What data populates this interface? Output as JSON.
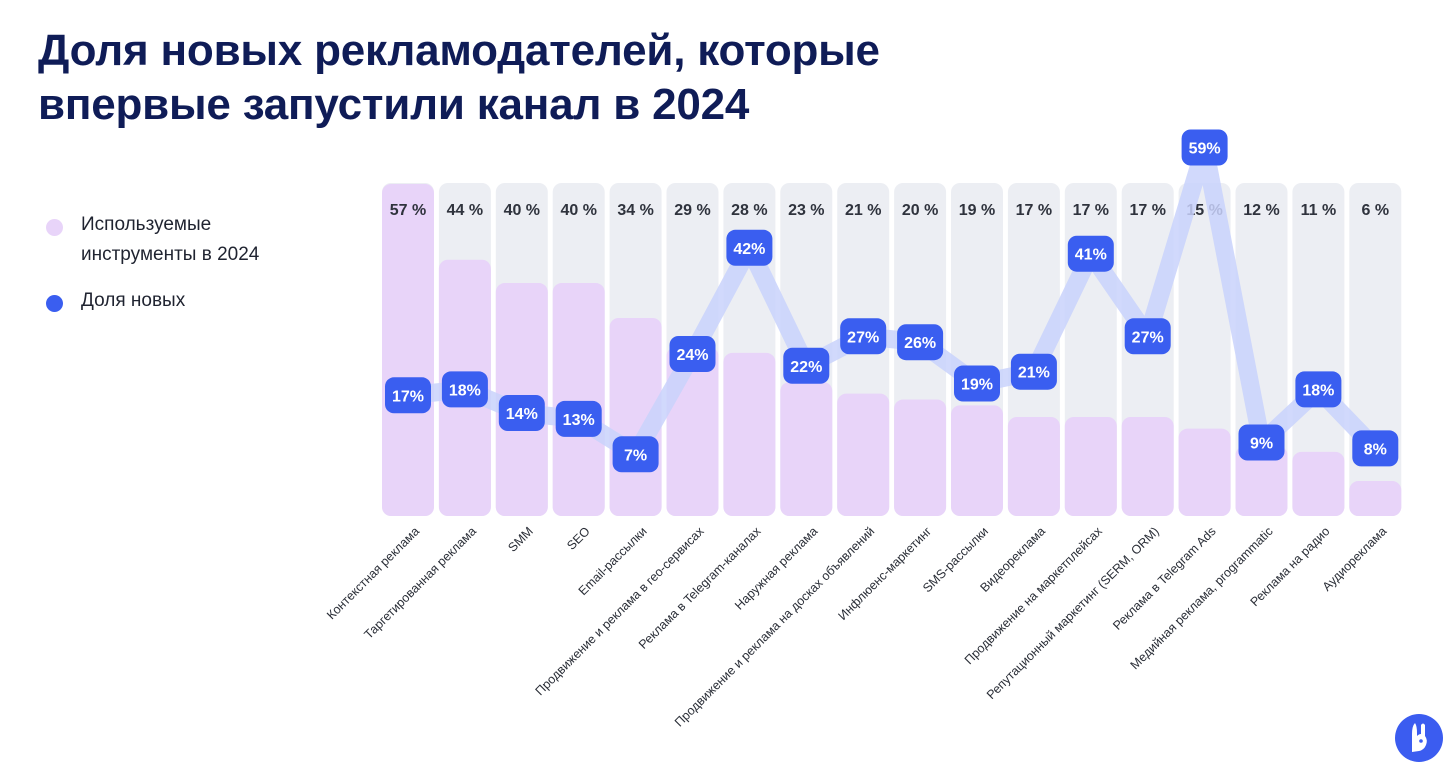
{
  "title": {
    "line1": "Доля новых рекламодателей, которые",
    "line2": "впервые запустили канал в 2024"
  },
  "legend": {
    "used": {
      "line1": "Используемые",
      "line2": "инструменты в 2024",
      "color": "#e8d4f9"
    },
    "new": {
      "label": "Доля новых",
      "color": "#3a5ef0"
    }
  },
  "colors": {
    "track": "#eceef3",
    "bar": "#e8d4f9",
    "bubble": "#3a5ef0",
    "ribbon": "#c9d2fb"
  },
  "logo": {
    "icon": "rabbit-logo-icon"
  },
  "chart_data": {
    "type": "bar",
    "title": "Доля новых рекламодателей, которые впервые запустили канал в 2024",
    "categories": [
      "Контекстная реклама",
      "Таргетированная реклама",
      "SMM",
      "SEO",
      "Email-рассылки",
      "Продвижение и реклама в гео-сервисах",
      "Реклама в Telegram-каналах",
      "Наружная реклама",
      "Продвижение и реклама на досках объявлений",
      "Инфлюенс-маркетинг",
      "SMS-рассылки",
      "Видеореклама",
      "Продвижение на маркетплейсах",
      "Репутационный маркетинг (SERM, ORM)",
      "Реклама в Telegram Ads",
      "Медийная реклама, programmatic",
      "Реклама на радио",
      "Аудиореклама"
    ],
    "series": [
      {
        "name": "Используемые инструменты в 2024",
        "type": "bar",
        "values": [
          57,
          44,
          40,
          40,
          34,
          29,
          28,
          23,
          21,
          20,
          19,
          17,
          17,
          17,
          15,
          12,
          11,
          6
        ],
        "labels": [
          "57 %",
          "44 %",
          "40 %",
          "40 %",
          "34 %",
          "29 %",
          "28 %",
          "23 %",
          "21 %",
          "20 %",
          "19 %",
          "17 %",
          "17 %",
          "17 %",
          "15 %",
          "12 %",
          "11 %",
          "6 %"
        ]
      },
      {
        "name": "Доля новых",
        "type": "line",
        "values": [
          17,
          18,
          14,
          13,
          7,
          24,
          42,
          22,
          27,
          26,
          19,
          21,
          41,
          27,
          59,
          9,
          18,
          8
        ],
        "labels": [
          "17%",
          "18%",
          "14%",
          "13%",
          "7%",
          "24%",
          "42%",
          "22%",
          "27%",
          "26%",
          "19%",
          "21%",
          "41%",
          "27%",
          "59%",
          "9%",
          "18%",
          "8%"
        ]
      }
    ],
    "ylim": [
      0,
      57
    ],
    "xlabel": "",
    "ylabel": "",
    "grid": false
  }
}
